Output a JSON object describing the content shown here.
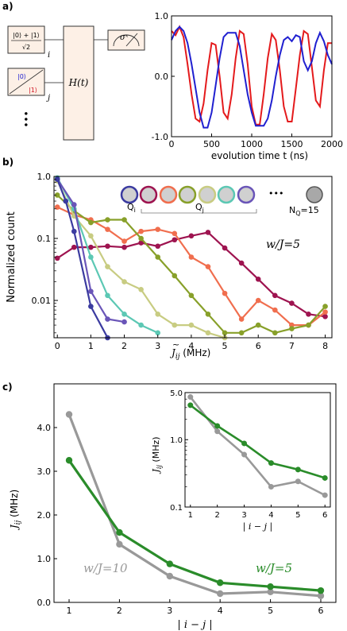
{
  "panels": {
    "a": "a)",
    "b": "b)",
    "c": "c)"
  },
  "circuit": {
    "input_i_num": "|0⟩ + |1⟩",
    "input_i_den": "√2",
    "input_i_sub": "i",
    "input_j_top": "|0⟩",
    "input_j_bottom": "|1⟩",
    "input_j_sub": "j",
    "hamiltonian": "H(t)",
    "measure": "σˣ",
    "dots": "•••"
  },
  "chart_a": {
    "type": "line",
    "xlabel": "evolution time t  (ns)",
    "xlim": [
      0,
      2000
    ],
    "ylim": [
      -1,
      1
    ],
    "xticks": [
      "0",
      "500",
      "1000",
      "1500",
      "2000"
    ],
    "yticks": [
      "1.0",
      "0.0",
      "-1.0"
    ],
    "colors": {
      "red": "#e41a1c",
      "blue": "#2020d0"
    },
    "series": [
      {
        "x": [
          0,
          50,
          100,
          150,
          200,
          250,
          300,
          350,
          400,
          450,
          500,
          550,
          600,
          650,
          700,
          750,
          800,
          850,
          900,
          950,
          1000,
          1050,
          1100,
          1150,
          1200,
          1250,
          1300,
          1350,
          1400,
          1450,
          1500,
          1550,
          1600,
          1650,
          1700,
          1750,
          1800,
          1850,
          1900,
          1950,
          2000
        ],
        "y": [
          0.75,
          0.68,
          0.82,
          0.65,
          0.2,
          -0.3,
          -0.7,
          -0.75,
          -0.45,
          0.1,
          0.55,
          0.52,
          0.0,
          -0.6,
          -0.7,
          -0.3,
          0.3,
          0.75,
          0.7,
          0.2,
          -0.5,
          -0.8,
          -0.8,
          -0.3,
          0.3,
          0.7,
          0.6,
          0.1,
          -0.5,
          -0.75,
          -0.75,
          -0.2,
          0.35,
          0.75,
          0.7,
          0.15,
          -0.4,
          -0.5,
          0.1,
          0.55,
          0.55
        ]
      },
      {
        "x": [
          0,
          50,
          100,
          150,
          200,
          250,
          300,
          350,
          400,
          450,
          500,
          550,
          600,
          650,
          700,
          750,
          800,
          850,
          900,
          950,
          1000,
          1050,
          1100,
          1150,
          1200,
          1250,
          1300,
          1350,
          1400,
          1450,
          1500,
          1550,
          1600,
          1650,
          1700,
          1750,
          1800,
          1850,
          1900,
          1950,
          2000
        ],
        "y": [
          0.6,
          0.75,
          0.82,
          0.75,
          0.55,
          0.2,
          -0.2,
          -0.6,
          -0.85,
          -0.85,
          -0.6,
          -0.15,
          0.3,
          0.65,
          0.72,
          0.72,
          0.72,
          0.5,
          0.1,
          -0.3,
          -0.6,
          -0.82,
          -0.82,
          -0.82,
          -0.7,
          -0.4,
          0.0,
          0.35,
          0.6,
          0.65,
          0.58,
          0.68,
          0.65,
          0.25,
          0.1,
          0.25,
          0.55,
          0.72,
          0.58,
          0.35,
          0.2
        ]
      }
    ]
  },
  "chart_b": {
    "type": "line",
    "ylabel": "Normalized count",
    "xlim": [
      -0.1,
      8.2
    ],
    "ylim": [
      0.0025,
      1.0
    ],
    "xticks": [
      0,
      1,
      2,
      3,
      4,
      5,
      6,
      7,
      8
    ],
    "yticks": [
      "1.0",
      "0.1",
      "0.01"
    ],
    "annotation": "w/J=5",
    "legend_qi": "Q",
    "legend_qi_sub": "i",
    "legend_qj": "Q",
    "legend_qj_sub": "j",
    "legend_dots": "•••",
    "legend_nq": "N",
    "legend_nq_sub": "Q",
    "legend_nq_val": "=15",
    "legend_colors": [
      "#3b3ba0",
      "#9e1450",
      "#f06e4e",
      "#88a02a",
      "#c8cc82",
      "#5cc8b4",
      "#6a55b8",
      "#a0a0a0"
    ],
    "xlabel_j": "J",
    "xlabel_sub": "ij",
    "xlabel_unit": "(MHz)",
    "series": [
      {
        "color": "#9e1450",
        "x": [
          0,
          0.5,
          1,
          1.5,
          2,
          2.5,
          3,
          3.5,
          4,
          4.5,
          5,
          5.5,
          6,
          6.5,
          7,
          7.5,
          8
        ],
        "y": [
          0.048,
          0.072,
          0.072,
          0.075,
          0.072,
          0.085,
          0.075,
          0.095,
          0.11,
          0.125,
          0.07,
          0.04,
          0.022,
          0.012,
          0.009,
          0.006,
          0.0055
        ]
      },
      {
        "color": "#f06e4e",
        "x": [
          0,
          0.5,
          1,
          1.5,
          2,
          2.5,
          3,
          3.5,
          4,
          4.5,
          5,
          5.5,
          6,
          6.5,
          7,
          7.5,
          8
        ],
        "y": [
          0.32,
          0.24,
          0.2,
          0.14,
          0.09,
          0.13,
          0.14,
          0.12,
          0.05,
          0.035,
          0.013,
          0.005,
          0.01,
          0.007,
          0.004,
          0.004,
          0.0065
        ]
      },
      {
        "color": "#88a02a",
        "x": [
          0,
          0.5,
          1,
          1.5,
          2,
          2.5,
          3,
          3.5,
          4,
          4.5,
          5,
          5.5,
          6,
          6.5,
          7,
          7.5,
          8
        ],
        "y": [
          0.5,
          0.28,
          0.18,
          0.2,
          0.2,
          0.1,
          0.05,
          0.025,
          0.012,
          0.006,
          0.003,
          0.003,
          0.004,
          0.003,
          0.0035,
          0.004,
          0.008
        ]
      },
      {
        "color": "#c8cc82",
        "x": [
          0,
          0.5,
          1,
          1.5,
          2,
          2.5,
          3,
          3.5,
          4,
          4.5,
          5
        ],
        "y": [
          0.85,
          0.23,
          0.11,
          0.035,
          0.02,
          0.015,
          0.006,
          0.004,
          0.004,
          0.003,
          0.0025
        ]
      },
      {
        "color": "#5cc8b4",
        "x": [
          0,
          0.5,
          1,
          1.5,
          2,
          2.5,
          3
        ],
        "y": [
          0.95,
          0.3,
          0.05,
          0.012,
          0.006,
          0.004,
          0.003
        ]
      },
      {
        "color": "#6a55b8",
        "x": [
          0,
          0.5,
          1,
          1.5,
          2
        ],
        "y": [
          0.9,
          0.35,
          0.014,
          0.005,
          0.0045
        ]
      },
      {
        "color": "#3b3ba0",
        "x": [
          0,
          0.25,
          0.5,
          1,
          1.5
        ],
        "y": [
          0.9,
          0.4,
          0.13,
          0.008,
          0.0025
        ]
      }
    ]
  },
  "chart_c": {
    "type": "line",
    "xlabel": "| i − j |",
    "ylabel_j": "J",
    "ylabel_sub": "ij",
    "ylabel_unit": "(MHz)",
    "xlim": [
      0.7,
      6.3
    ],
    "ylim": [
      0,
      5
    ],
    "xticks": [
      1,
      2,
      3,
      4,
      5,
      6
    ],
    "yticks": [
      "0.0",
      "1.0",
      "2.0",
      "3.0",
      "4.0"
    ],
    "label_gray": "w/J=10",
    "label_green": "w/J=5",
    "colors": {
      "gray": "#999999",
      "green": "#2a8c2a"
    },
    "series": [
      {
        "name": "w/J=10",
        "x": [
          1,
          2,
          3,
          4,
          5,
          6
        ],
        "y": [
          4.3,
          1.33,
          0.6,
          0.2,
          0.24,
          0.15
        ]
      },
      {
        "name": "w/J=5",
        "x": [
          1,
          2,
          3,
          4,
          5,
          6
        ],
        "y": [
          3.25,
          1.6,
          0.88,
          0.45,
          0.36,
          0.27
        ]
      }
    ],
    "inset": {
      "xlim": [
        0.8,
        6.2
      ],
      "ylim": [
        0.1,
        5.0
      ],
      "yticks": [
        "5.0",
        "1.0",
        "0.1"
      ],
      "xlabel": "| i − j |"
    }
  }
}
